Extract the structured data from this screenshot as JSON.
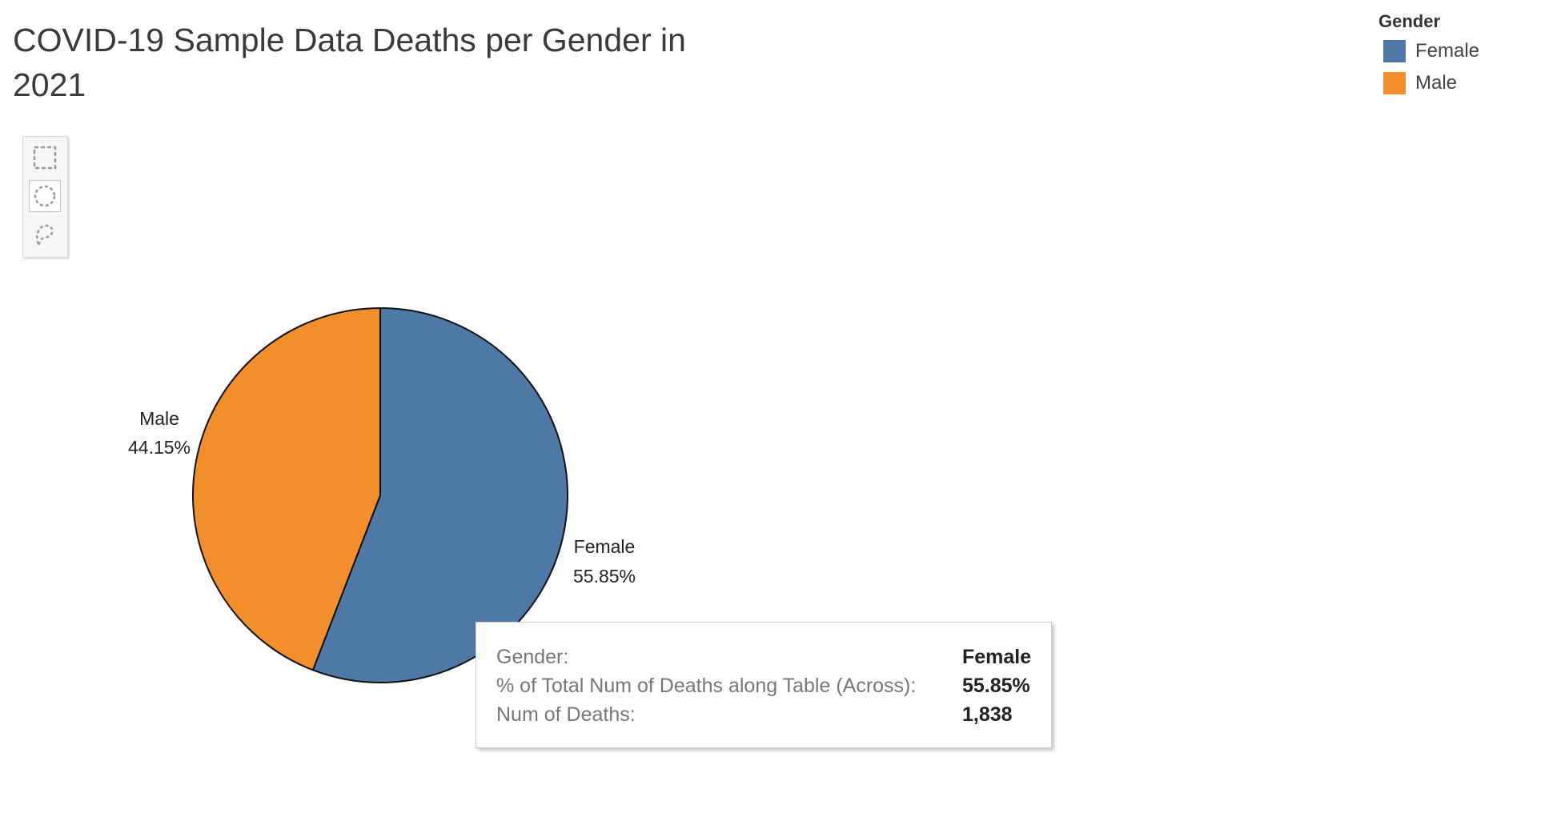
{
  "title": "COVID-19 Sample Data Deaths per Gender in 2021",
  "toolbar": {
    "tools": [
      {
        "icon": "rectangle-select-icon"
      },
      {
        "icon": "radial-select-icon"
      },
      {
        "icon": "lasso-select-icon"
      }
    ]
  },
  "legend": {
    "title": "Gender",
    "items": [
      {
        "label": "Female",
        "color": "#4e79a7"
      },
      {
        "label": "Male",
        "color": "#f28e2b"
      }
    ]
  },
  "chart_data": {
    "type": "pie",
    "title": "COVID-19 Sample Data Deaths per Gender in 2021",
    "legend_title": "Gender",
    "legend_position": "top-right",
    "slices": [
      {
        "label": "Female",
        "percent": 55.85,
        "percent_label": "55.85%",
        "value": 1838,
        "color": "#4e79a7"
      },
      {
        "label": "Male",
        "percent": 44.15,
        "percent_label": "44.15%",
        "color": "#f28e2b"
      }
    ]
  },
  "tooltip": {
    "rows": [
      {
        "key": "Gender:",
        "value": "Female"
      },
      {
        "key": "% of Total Num of Deaths along Table (Across):",
        "value": "55.85%"
      },
      {
        "key": "Num of Deaths:",
        "value": "1,838"
      }
    ]
  }
}
